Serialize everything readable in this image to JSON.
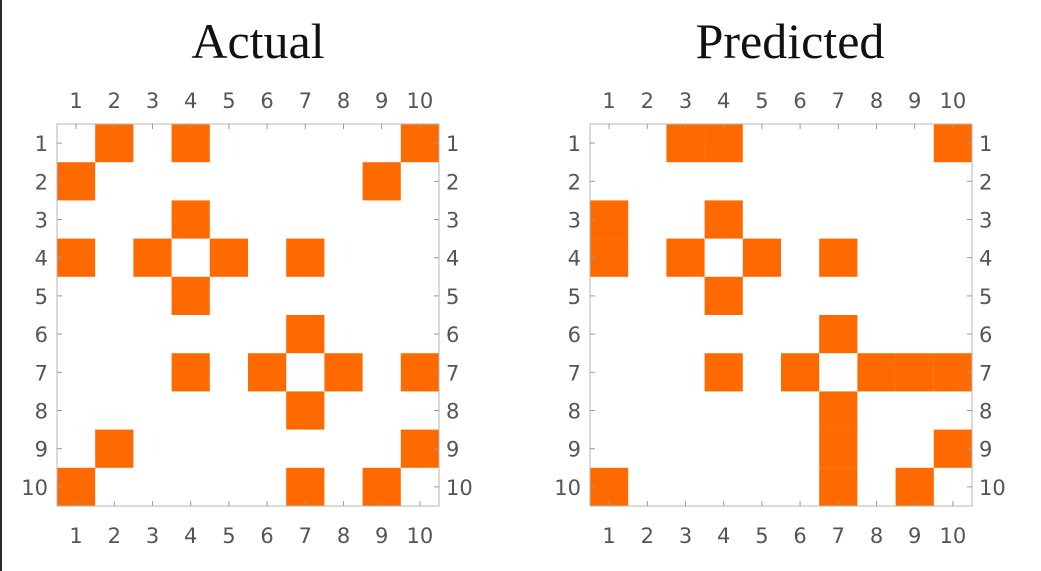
{
  "chart_data": [
    {
      "type": "heatmap",
      "title": "Actual",
      "x_ticks": [
        "1",
        "2",
        "3",
        "4",
        "5",
        "6",
        "7",
        "8",
        "9",
        "10"
      ],
      "y_ticks": [
        "1",
        "2",
        "3",
        "4",
        "5",
        "6",
        "7",
        "8",
        "9",
        "10"
      ],
      "fill_color": "#ff6a00",
      "background_color": "#ffffff",
      "matrix": [
        [
          0,
          1,
          0,
          1,
          0,
          0,
          0,
          0,
          0,
          1
        ],
        [
          1,
          0,
          0,
          0,
          0,
          0,
          0,
          0,
          1,
          0
        ],
        [
          0,
          0,
          0,
          1,
          0,
          0,
          0,
          0,
          0,
          0
        ],
        [
          1,
          0,
          1,
          0,
          1,
          0,
          1,
          0,
          0,
          0
        ],
        [
          0,
          0,
          0,
          1,
          0,
          0,
          0,
          0,
          0,
          0
        ],
        [
          0,
          0,
          0,
          0,
          0,
          0,
          1,
          0,
          0,
          0
        ],
        [
          0,
          0,
          0,
          1,
          0,
          1,
          0,
          1,
          0,
          1
        ],
        [
          0,
          0,
          0,
          0,
          0,
          0,
          1,
          0,
          0,
          0
        ],
        [
          0,
          1,
          0,
          0,
          0,
          0,
          0,
          0,
          0,
          1
        ],
        [
          1,
          0,
          0,
          0,
          0,
          0,
          1,
          0,
          1,
          0
        ]
      ]
    },
    {
      "type": "heatmap",
      "title": "Predicted",
      "x_ticks": [
        "1",
        "2",
        "3",
        "4",
        "5",
        "6",
        "7",
        "8",
        "9",
        "10"
      ],
      "y_ticks": [
        "1",
        "2",
        "3",
        "4",
        "5",
        "6",
        "7",
        "8",
        "9",
        "10"
      ],
      "fill_color": "#ff6a00",
      "background_color": "#ffffff",
      "matrix": [
        [
          0,
          0,
          1,
          1,
          0,
          0,
          0,
          0,
          0,
          1
        ],
        [
          0,
          0,
          0,
          0,
          0,
          0,
          0,
          0,
          0,
          0
        ],
        [
          1,
          0,
          0,
          1,
          0,
          0,
          0,
          0,
          0,
          0
        ],
        [
          1,
          0,
          1,
          0,
          1,
          0,
          1,
          0,
          0,
          0
        ],
        [
          0,
          0,
          0,
          1,
          0,
          0,
          0,
          0,
          0,
          0
        ],
        [
          0,
          0,
          0,
          0,
          0,
          0,
          1,
          0,
          0,
          0
        ],
        [
          0,
          0,
          0,
          1,
          0,
          1,
          0,
          1,
          1,
          1
        ],
        [
          0,
          0,
          0,
          0,
          0,
          0,
          1,
          0,
          0,
          0
        ],
        [
          0,
          0,
          0,
          0,
          0,
          0,
          1,
          0,
          0,
          1
        ],
        [
          1,
          0,
          0,
          0,
          0,
          0,
          1,
          0,
          1,
          0
        ]
      ]
    }
  ]
}
